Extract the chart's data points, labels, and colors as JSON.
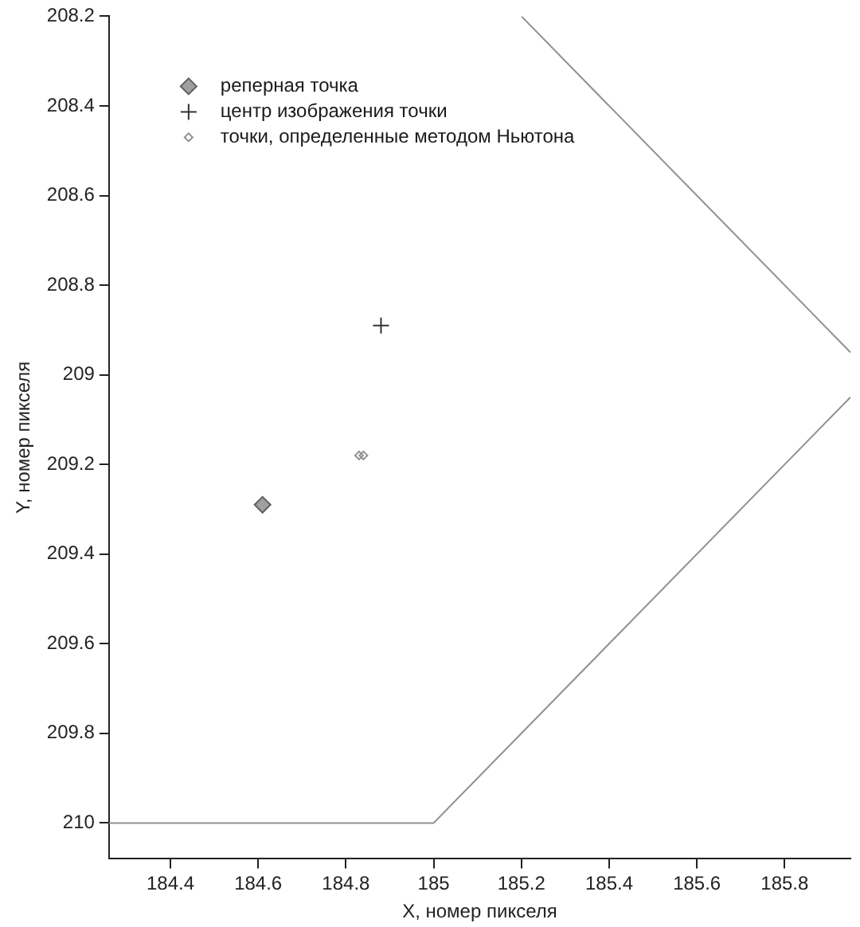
{
  "chart_data": {
    "type": "scatter",
    "xlabel": "X, номер пикселя",
    "ylabel": "Y, номер пикселя",
    "xlim": [
      184.26,
      185.95
    ],
    "ylim": [
      210.08,
      208.2
    ],
    "xticks": [
      {
        "value": 184.4,
        "label": "184.4"
      },
      {
        "value": 184.6,
        "label": "184.6"
      },
      {
        "value": 184.8,
        "label": "184.8"
      },
      {
        "value": 185,
        "label": "185"
      },
      {
        "value": 185.2,
        "label": "185.2"
      },
      {
        "value": 185.4,
        "label": "185.4"
      },
      {
        "value": 185.6,
        "label": "185.6"
      },
      {
        "value": 185.8,
        "label": "185.8"
      }
    ],
    "yticks": [
      {
        "value": 208.2,
        "label": "208.2"
      },
      {
        "value": 208.4,
        "label": "208.4"
      },
      {
        "value": 208.6,
        "label": "208.6"
      },
      {
        "value": 208.8,
        "label": "208.8"
      },
      {
        "value": 209,
        "label": "209"
      },
      {
        "value": 209.2,
        "label": "209.2"
      },
      {
        "value": 209.4,
        "label": "209.4"
      },
      {
        "value": 209.6,
        "label": "209.6"
      },
      {
        "value": 209.8,
        "label": "209.8"
      },
      {
        "value": 210,
        "label": "210"
      }
    ],
    "grid": false,
    "legend": "top left",
    "series": [
      {
        "name": "реперная точка",
        "marker": "diamond",
        "color": "#a0a0a0",
        "x": [
          184.61
        ],
        "values": [
          209.29
        ]
      },
      {
        "name": "центр изображения точки",
        "marker": "cross",
        "color": "#333333",
        "x": [
          184.88
        ],
        "values": [
          208.89
        ]
      },
      {
        "name": "точки, определенные методом Ньютона",
        "marker": "diamond",
        "color": "#909090",
        "x": [
          184.83,
          184.84
        ],
        "values": [
          209.18,
          209.18
        ]
      },
      {
        "type": "line",
        "marker": "none",
        "color": "#909090",
        "x": [
          184.26,
          185,
          185.95
        ],
        "values": [
          210,
          210,
          209.05
        ]
      },
      {
        "type": "line",
        "marker": "none",
        "color": "#909090",
        "x": [
          185.2,
          185.95
        ],
        "values": [
          208.2,
          208.95
        ]
      }
    ]
  }
}
